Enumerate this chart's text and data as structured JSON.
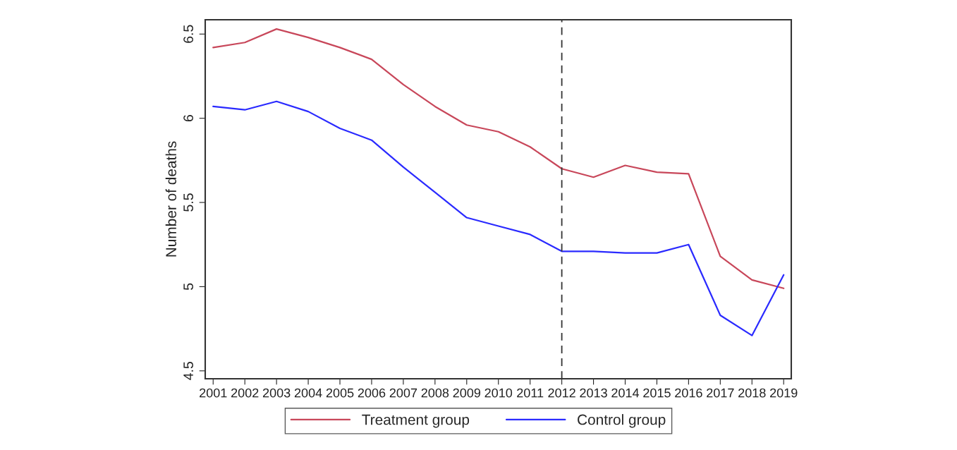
{
  "chart_data": {
    "type": "line",
    "ylabel": "Number of deaths",
    "x": [
      2001,
      2002,
      2003,
      2004,
      2005,
      2006,
      2007,
      2008,
      2009,
      2010,
      2011,
      2012,
      2013,
      2014,
      2015,
      2016,
      2017,
      2018,
      2019
    ],
    "series": [
      {
        "name": "Treatment group",
        "color": "#c8475a",
        "values": [
          6.42,
          6.45,
          6.53,
          6.48,
          6.42,
          6.35,
          6.2,
          6.07,
          5.96,
          5.92,
          5.83,
          5.7,
          5.65,
          5.72,
          5.68,
          5.67,
          5.18,
          5.04,
          4.99
        ]
      },
      {
        "name": "Control group",
        "color": "#2a2aff",
        "values": [
          6.07,
          6.05,
          6.1,
          6.04,
          5.94,
          5.87,
          5.71,
          5.56,
          5.41,
          5.36,
          5.31,
          5.21,
          5.21,
          5.2,
          5.2,
          5.25,
          4.83,
          4.71,
          5.07
        ]
      }
    ],
    "xlim": [
      2000.75,
      2019.24
    ],
    "xticks": [
      2001,
      2002,
      2003,
      2004,
      2005,
      2006,
      2007,
      2008,
      2009,
      2010,
      2011,
      2012,
      2013,
      2014,
      2015,
      2016,
      2017,
      2018,
      2019
    ],
    "ylim": [
      4.453,
      6.585
    ],
    "yticks": [
      {
        "value": 4.5,
        "label": "4.5"
      },
      {
        "value": 5,
        "label": "5"
      },
      {
        "value": 5.5,
        "label": "5.5"
      },
      {
        "value": 6,
        "label": "6"
      },
      {
        "value": 6.5,
        "label": "6.5"
      }
    ],
    "ref_lines": [
      {
        "axis": "x",
        "value": 2012,
        "color": "#333333",
        "line_style": "dashed"
      }
    ],
    "legend": "bottom",
    "grid": false,
    "marker": "none",
    "line_style": "solid"
  }
}
